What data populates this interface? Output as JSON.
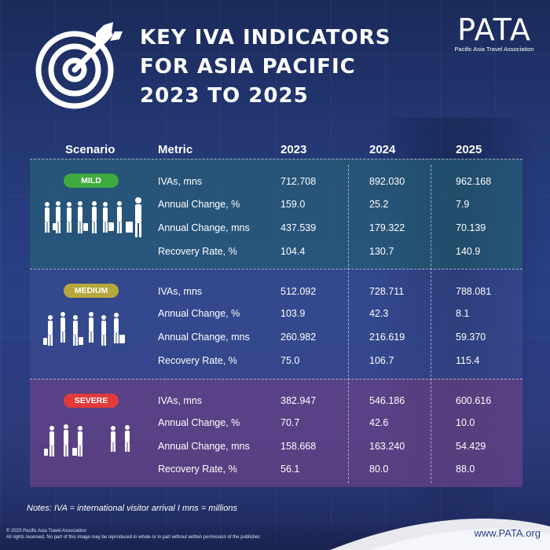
{
  "title": {
    "line1": "KEY IVA INDICATORS",
    "line2": "FOR ASIA PACIFIC",
    "line3": "2023 TO 2025"
  },
  "logo": {
    "word": "PATA",
    "registered": "®",
    "tagline": "Pacific Asia Travel Association"
  },
  "columns": {
    "scenario": "Scenario",
    "metric": "Metric",
    "y2023": "2023",
    "y2024": "2024",
    "y2025": "2025"
  },
  "scenarios": [
    {
      "label": "MILD",
      "color": "#3eaa3e",
      "rows": [
        {
          "metric": "IVAs, mns",
          "y2023": "712.708",
          "y2024": "892.030",
          "y2025": "962.168"
        },
        {
          "metric": "Annual Change, %",
          "y2023": "159.0",
          "y2024": "25.2",
          "y2025": "7.9"
        },
        {
          "metric": "Annual Change, mns",
          "y2023": "437.539",
          "y2024": "179.322",
          "y2025": "70.139"
        },
        {
          "metric": "Recovery Rate, %",
          "y2023": "104.4",
          "y2024": "130.7",
          "y2025": "140.9"
        }
      ]
    },
    {
      "label": "MEDIUM",
      "color": "#b5a73c",
      "rows": [
        {
          "metric": "IVAs, mns",
          "y2023": "512.092",
          "y2024": "728.711",
          "y2025": "788.081"
        },
        {
          "metric": "Annual Change, %",
          "y2023": "103.9",
          "y2024": "42.3",
          "y2025": "8.1"
        },
        {
          "metric": "Annual Change, mns",
          "y2023": "260.982",
          "y2024": "216.619",
          "y2025": "59.370"
        },
        {
          "metric": "Recovery Rate, %",
          "y2023": "75.0",
          "y2024": "106.7",
          "y2025": "115.4"
        }
      ]
    },
    {
      "label": "SEVERE",
      "color": "#e03a3a",
      "rows": [
        {
          "metric": "IVAs, mns",
          "y2023": "382.947",
          "y2024": "546.186",
          "y2025": "600.616"
        },
        {
          "metric": "Annual Change, %",
          "y2023": "70.7",
          "y2024": "42.6",
          "y2025": "10.0"
        },
        {
          "metric": "Annual Change, mns",
          "y2023": "158.668",
          "y2024": "163.240",
          "y2025": "54.429"
        },
        {
          "metric": "Recovery Rate, %",
          "y2023": "56.1",
          "y2024": "80.0",
          "y2025": "88.0"
        }
      ]
    }
  ],
  "notes": "Notes: IVA = international visitor arrival I mns = millions",
  "footer": {
    "copyright_line1": "© 2023 Pacific Asia Travel Association",
    "copyright_line2": "All rights reserved. No part of this image may be reproduced in whole or in part without written permission of the publisher.",
    "website": "www.PATA.org"
  },
  "icons": {
    "header": "target-arrow-icon",
    "scenario_figures": "travelers-icon"
  }
}
